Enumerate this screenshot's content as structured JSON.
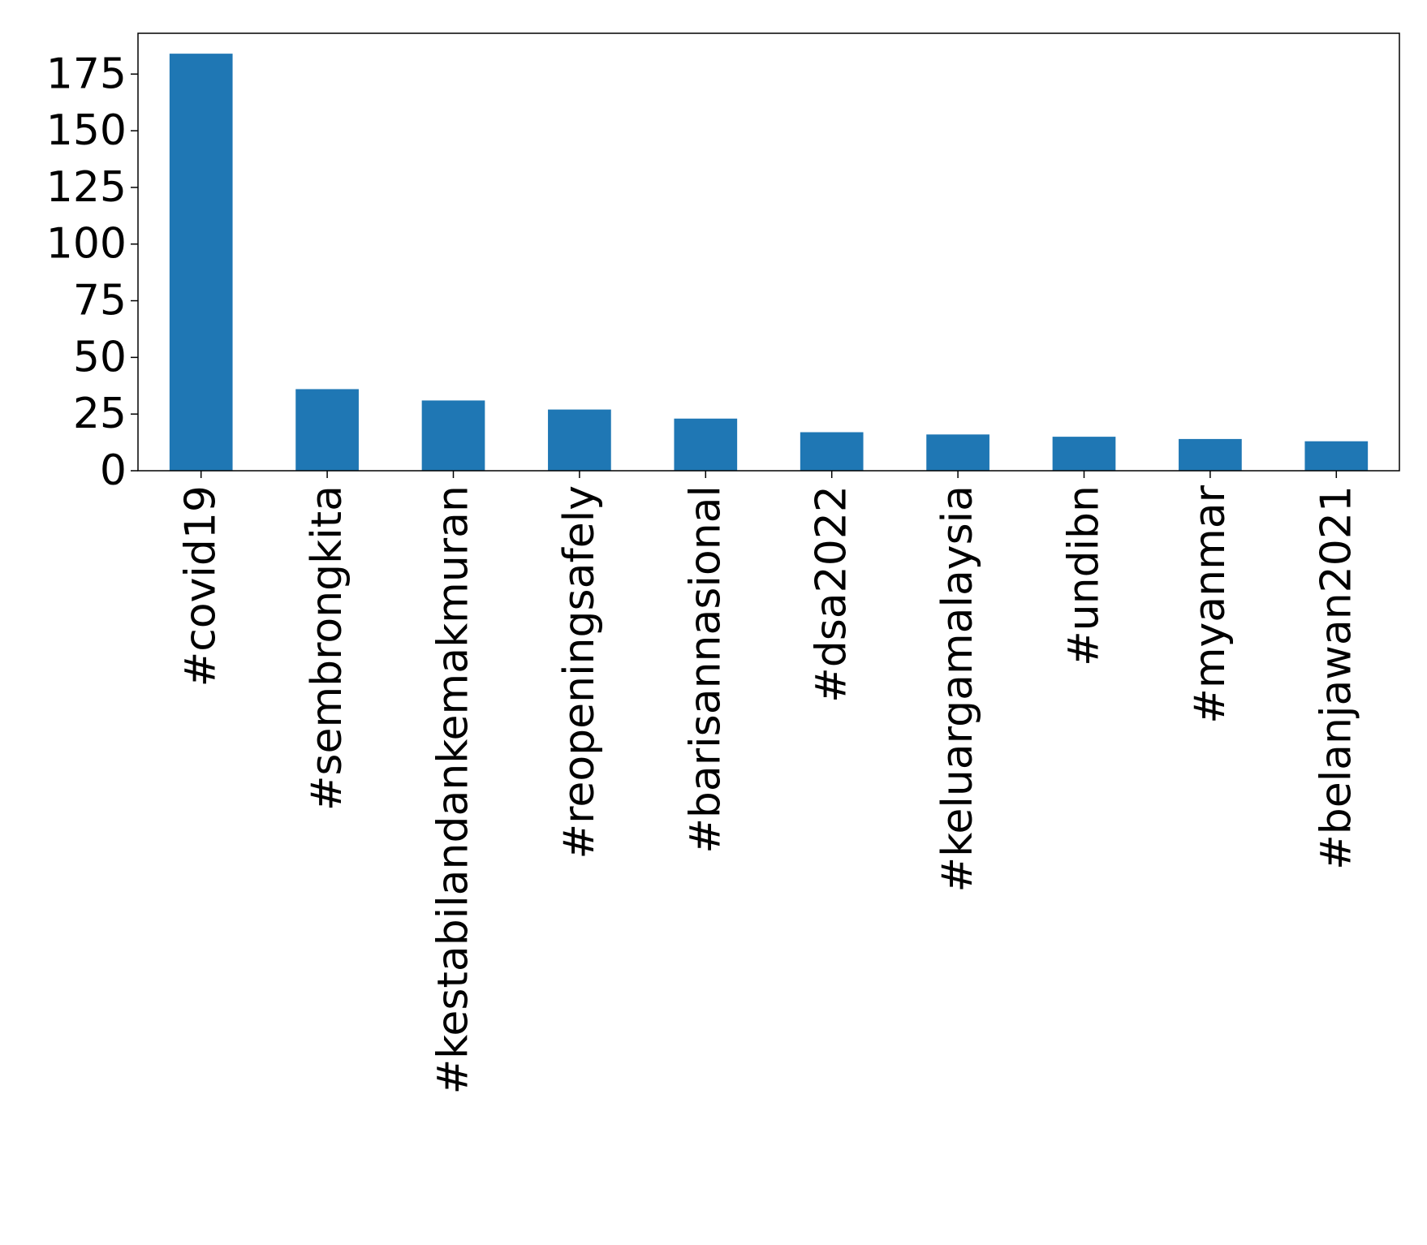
{
  "chart_data": {
    "type": "bar",
    "title": "",
    "xlabel": "",
    "ylabel": "",
    "categories": [
      "#covid19",
      "#sembrongkita",
      "#kestabilandankemakmuran",
      "#reopeningsafely",
      "#barisannasional",
      "#dsa2022",
      "#keluargamalaysia",
      "#undibn",
      "#myanmar",
      "#belanjawan2021"
    ],
    "values": [
      184,
      36,
      31,
      27,
      23,
      17,
      16,
      15,
      14,
      13
    ],
    "ylim": [
      0,
      193
    ],
    "yticks": [
      0,
      25,
      50,
      75,
      100,
      125,
      150,
      175
    ],
    "grid": false,
    "legend": "none",
    "bar_color": "#1f77b4"
  }
}
